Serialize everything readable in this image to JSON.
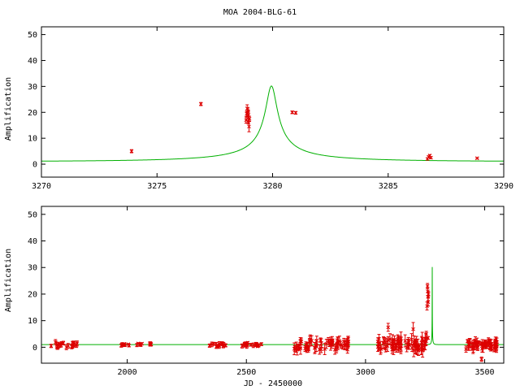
{
  "chart_data": [
    {
      "type": "scatter",
      "title": "MOA 2004-BLG-61",
      "xlabel": "",
      "ylabel": "Amplification",
      "xlim": [
        3270,
        3290
      ],
      "ylim": [
        -5,
        53
      ],
      "x_ticks": [
        3270,
        3275,
        3280,
        3285,
        3290
      ],
      "y_ticks": [
        0,
        10,
        20,
        30,
        40,
        50
      ],
      "grid": false,
      "legend": "none",
      "colors": {
        "points": "#dd0000",
        "model": "#00b000"
      },
      "model": {
        "kind": "paczynski",
        "t0": 3279.95,
        "u0": 0.033,
        "tE": 7.5,
        "peak": 30.2
      },
      "points": [
        {
          "x": 3273.9,
          "y": 5.0,
          "err": 0.6
        },
        {
          "x": 3276.9,
          "y": 23.2,
          "err": 0.6
        },
        {
          "x": 3278.85,
          "y": 17.0,
          "err": 1.2
        },
        {
          "x": 3278.88,
          "y": 19.5,
          "err": 1.0
        },
        {
          "x": 3278.9,
          "y": 21.5,
          "err": 1.4
        },
        {
          "x": 3278.92,
          "y": 18.5,
          "err": 1.0
        },
        {
          "x": 3278.94,
          "y": 20.5,
          "err": 1.2
        },
        {
          "x": 3278.95,
          "y": 16.5,
          "err": 1.0
        },
        {
          "x": 3278.96,
          "y": 19.0,
          "err": 1.5
        },
        {
          "x": 3278.98,
          "y": 14.5,
          "err": 2.0
        },
        {
          "x": 3279.0,
          "y": 17.5,
          "err": 1.0
        },
        {
          "x": 3280.85,
          "y": 20.0,
          "err": 0.5
        },
        {
          "x": 3281.0,
          "y": 19.8,
          "err": 0.5
        },
        {
          "x": 3286.7,
          "y": 2.0,
          "err": 0.4
        },
        {
          "x": 3286.75,
          "y": 2.8,
          "err": 0.4
        },
        {
          "x": 3286.8,
          "y": 3.3,
          "err": 0.4
        },
        {
          "x": 3286.85,
          "y": 2.5,
          "err": 0.4
        },
        {
          "x": 3288.85,
          "y": 2.3,
          "err": 0.3
        }
      ]
    },
    {
      "type": "scatter",
      "title": "",
      "xlabel": "JD - 2450000",
      "ylabel": "Amplification",
      "xlim": [
        1640,
        3580
      ],
      "ylim": [
        -6,
        53
      ],
      "x_ticks": [
        2000,
        2500,
        3000,
        3500
      ],
      "y_ticks": [
        0,
        10,
        20,
        30,
        40,
        50
      ],
      "grid": false,
      "legend": "none",
      "colors": {
        "points": "#dd0000",
        "model": "#00b000"
      },
      "model": {
        "kind": "paczynski",
        "t0": 3279.95,
        "u0": 0.033,
        "tE": 7.5,
        "peak": 30.2
      },
      "clusters": [
        {
          "x_range": [
            1680,
            1790
          ],
          "n": 22,
          "scatter": 1.2,
          "err": 0.8
        },
        {
          "x_range": [
            1950,
            2010
          ],
          "n": 8,
          "scatter": 0.6,
          "err": 0.5
        },
        {
          "x_range": [
            2040,
            2110
          ],
          "n": 10,
          "scatter": 0.5,
          "err": 0.5
        },
        {
          "x_range": [
            2345,
            2430
          ],
          "n": 14,
          "scatter": 0.8,
          "err": 0.6
        },
        {
          "x_range": [
            2470,
            2570
          ],
          "n": 16,
          "scatter": 0.7,
          "err": 0.6
        },
        {
          "x_range": [
            2700,
            2930
          ],
          "n": 60,
          "scatter": 2.0,
          "err": 1.5
        },
        {
          "x_range": [
            3050,
            3255
          ],
          "n": 70,
          "scatter": 2.3,
          "err": 1.7
        },
        {
          "x_range": [
            3420,
            3560
          ],
          "n": 55,
          "scatter": 1.7,
          "err": 1.2
        }
      ],
      "points": [
        {
          "x": 3095,
          "y": 7.5,
          "err": 1.5
        },
        {
          "x": 3200,
          "y": 6.8,
          "err": 2.5
        },
        {
          "x": 3255,
          "y": 5.0,
          "err": 1.0
        },
        {
          "x": 3258,
          "y": 15.5,
          "err": 1.5
        },
        {
          "x": 3260,
          "y": 23.0,
          "err": 1.0
        },
        {
          "x": 3261,
          "y": 21.0,
          "err": 1.5
        },
        {
          "x": 3262,
          "y": 19.0,
          "err": 1.5
        },
        {
          "x": 3263,
          "y": 17.0,
          "err": 1.5
        },
        {
          "x": 3264,
          "y": 20.0,
          "err": 1.0
        },
        {
          "x": 3262,
          "y": 3.5,
          "err": 0.5
        },
        {
          "x": 3487,
          "y": -4.5,
          "err": 0.8
        }
      ]
    }
  ]
}
